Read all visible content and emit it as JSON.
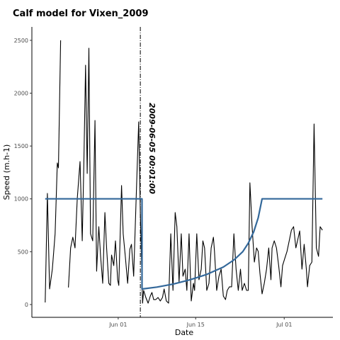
{
  "chart_data": {
    "type": "line",
    "title": "Calf model for Vixen_2009",
    "x_label": "Date",
    "y_label": "Speed (m.h-1)",
    "xlim": [
      -14.6,
      39.8
    ],
    "ylim": [
      -121,
      2627
    ],
    "xticks": [
      {
        "value": 1,
        "label": "Jun 01"
      },
      {
        "value": 15,
        "label": "Jun 15"
      },
      {
        "value": 31,
        "label": "Jul 01"
      }
    ],
    "yticks": [
      0,
      500,
      1000,
      1500,
      2000,
      2500
    ],
    "grid": false,
    "vline": {
      "x": 5.0,
      "label": "2009-06-05 00:01:00"
    },
    "series": [
      {
        "color": "#000000",
        "width": 1.1,
        "x": [
          -12.2,
          -11.8,
          -11.4,
          -10.9,
          -10.4,
          -10.0,
          -9.8,
          -9.4,
          null,
          -8.0,
          -7.6,
          -7.2,
          -6.8,
          -6.4,
          -5.9,
          -5.5,
          -5.2,
          -4.9,
          -4.6,
          -4.3,
          -4.0,
          -3.6,
          -3.2,
          -2.9,
          -2.5,
          -2.2,
          -1.8,
          -1.4,
          -1.1,
          -0.7,
          -0.4,
          -0.2,
          0.2,
          0.5,
          0.9,
          1.1,
          1.6,
          1.9,
          2.3,
          2.7,
          3.1,
          3.4,
          3.8,
          4.2,
          4.7,
          5.0,
          5.4,
          5.6,
          6.0,
          6.4,
          6.8,
          7.1,
          7.4,
          7.8,
          8.2,
          8.6,
          9.0,
          9.3,
          9.7,
          10.1,
          10.5,
          10.9,
          11.3,
          11.6,
          12.0,
          12.4,
          12.7,
          13.1,
          13.4,
          13.8,
          14.2,
          14.6,
          14.8,
          15.2,
          15.6,
          16.0,
          16.3,
          16.6,
          17.0,
          17.4,
          17.8,
          18.2,
          18.4,
          18.8,
          19.2,
          19.6,
          20.0,
          20.4,
          20.7,
          21.1,
          21.5,
          21.9,
          22.3,
          22.7,
          23.1,
          23.4,
          23.8,
          24.2,
          24.5,
          24.8,
          25.2,
          25.6,
          26.0,
          26.3,
          26.6,
          27.0,
          27.4,
          27.8,
          28.2,
          28.6,
          28.8,
          29.2,
          29.6,
          30.0,
          30.4,
          30.7,
          31.1,
          31.5,
          31.9,
          32.3,
          32.7,
          33.1,
          33.4,
          33.8,
          34.2,
          34.6,
          35.0,
          35.2,
          35.6,
          36.0,
          36.4,
          36.8,
          37.2,
          37.5,
          37.9
        ],
        "values": [
          20,
          1052,
          148,
          335,
          670,
          1340,
          1293,
          2500,
          null,
          161,
          536,
          637,
          536,
          1005,
          1353,
          603,
          1340,
          2265,
          1240,
          2425,
          670,
          603,
          1742,
          315,
          737,
          469,
          201,
          871,
          536,
          201,
          181,
          469,
          369,
          603,
          235,
          181,
          1126,
          670,
          449,
          201,
          523,
          570,
          268,
          938,
          1729,
          871,
          13,
          134,
          67,
          13,
          80,
          114,
          47,
          47,
          67,
          34,
          67,
          147,
          34,
          13,
          670,
          134,
          871,
          737,
          214,
          670,
          268,
          335,
          134,
          670,
          34,
          201,
          134,
          670,
          235,
          335,
          603,
          536,
          134,
          201,
          536,
          637,
          503,
          134,
          268,
          335,
          80,
          47,
          134,
          168,
          168,
          670,
          335,
          134,
          335,
          134,
          201,
          134,
          134,
          1152,
          737,
          402,
          536,
          503,
          302,
          101,
          201,
          335,
          536,
          235,
          536,
          603,
          536,
          369,
          168,
          369,
          436,
          503,
          603,
          704,
          737,
          536,
          603,
          697,
          335,
          570,
          335,
          168,
          369,
          402,
          1709,
          536,
          456,
          737,
          704
        ]
      },
      {
        "color": "#33689a",
        "width": 2.2,
        "x": [
          -12.2,
          5.3,
          5.3,
          8,
          11,
          14,
          17,
          20,
          22,
          23.5,
          24.5,
          25.5,
          26.3,
          27,
          37.9
        ],
        "values": [
          1000,
          1000,
          147,
          165,
          195,
          235,
          285,
          355,
          425,
          500,
          580,
          690,
          820,
          1000,
          1000
        ]
      }
    ]
  }
}
